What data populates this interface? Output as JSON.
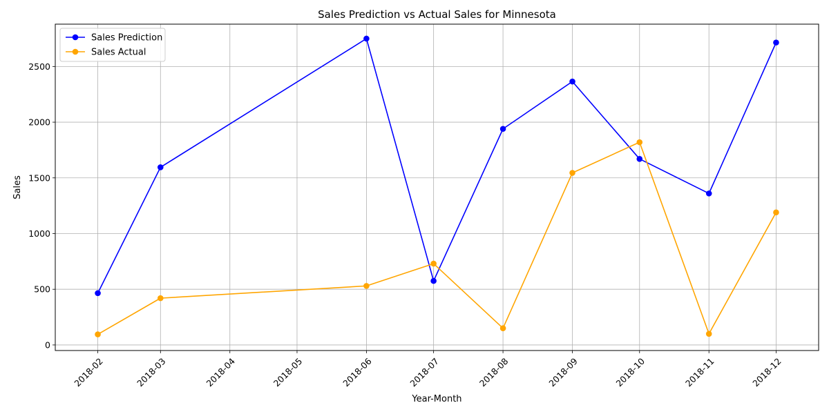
{
  "chart_data": {
    "type": "line",
    "title": "Sales Prediction vs Actual Sales for Minnesota",
    "xlabel": "Year-Month",
    "ylabel": "Sales",
    "x_ticks": [
      "2018-02",
      "2018-03",
      "2018-04",
      "2018-05",
      "2018-06",
      "2018-07",
      "2018-08",
      "2018-09",
      "2018-10",
      "2018-11",
      "2018-12"
    ],
    "y_ticks": [
      0,
      500,
      1000,
      1500,
      2000,
      2500
    ],
    "ylim": [
      -50,
      2880
    ],
    "xlim": [
      "2018-01-13",
      "2018-12-20"
    ],
    "grid": true,
    "legend_position": "top-left",
    "series": [
      {
        "name": "Sales Prediction",
        "color": "#0000ff",
        "marker": "circle",
        "x": [
          "2018-02-01",
          "2018-03-01",
          "2018-06-01",
          "2018-07-01",
          "2018-08-01",
          "2018-09-01",
          "2018-10-01",
          "2018-11-01",
          "2018-12-01"
        ],
        "values": [
          465,
          1595,
          2750,
          575,
          1940,
          2365,
          1670,
          1360,
          2715
        ]
      },
      {
        "name": "Sales Actual",
        "color": "#ffa500",
        "marker": "circle",
        "x": [
          "2018-02-01",
          "2018-03-01",
          "2018-06-01",
          "2018-07-01",
          "2018-08-01",
          "2018-09-01",
          "2018-10-01",
          "2018-11-01",
          "2018-12-01"
        ],
        "values": [
          95,
          420,
          530,
          730,
          150,
          1545,
          1820,
          100,
          1190
        ]
      }
    ]
  }
}
